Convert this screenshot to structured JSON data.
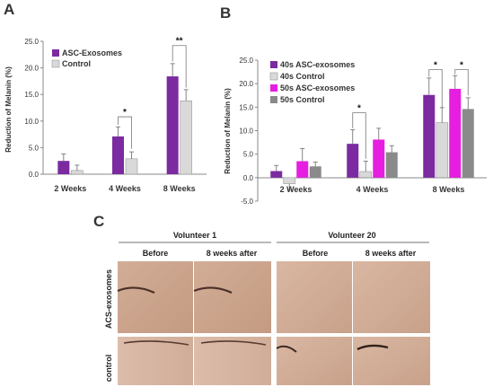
{
  "panels": {
    "a": "A",
    "b": "B",
    "c": "C"
  },
  "chart_data": [
    {
      "type": "bar",
      "panel": "A",
      "ylabel": "Reduction of Melanin (%)",
      "xlabel": "",
      "ylim": [
        0,
        25
      ],
      "yticks": [
        "0.0",
        "5.0",
        "10.0",
        "15.0",
        "20.0",
        "25.0"
      ],
      "categories": [
        "2 Weeks",
        "4 Weeks",
        "8 Weeks"
      ],
      "series": [
        {
          "name": "ASC-Exosomes",
          "color": "#7b2aa0",
          "values": [
            2.5,
            7.1,
            18.4
          ],
          "errors": [
            1.3,
            1.8,
            2.4
          ]
        },
        {
          "name": "Control",
          "color": "#d9d9d9",
          "values": [
            0.7,
            2.9,
            13.8
          ],
          "errors": [
            1.0,
            1.3,
            2.1
          ]
        }
      ],
      "significance": [
        {
          "category": "4 Weeks",
          "label": "*"
        },
        {
          "category": "8 Weeks",
          "label": "**"
        }
      ],
      "legend_position": "top-left",
      "grid": false
    },
    {
      "type": "bar",
      "panel": "B",
      "ylabel": "Reduction of Melanin (%)",
      "xlabel": "",
      "ylim": [
        -5,
        25
      ],
      "yticks": [
        "-5.0",
        "0.0",
        "5.0",
        "10.0",
        "15.0",
        "20.0",
        "25.0"
      ],
      "categories": [
        "2 Weeks",
        "4 Weeks",
        "8 Weeks"
      ],
      "series": [
        {
          "name": "40s ASC-exosomes",
          "color": "#7b2aa0",
          "values": [
            1.4,
            7.2,
            17.6
          ],
          "errors": [
            1.2,
            3.0,
            3.6
          ]
        },
        {
          "name": "40s Control",
          "color": "#d9d9d9",
          "values": [
            -1.3,
            1.3,
            11.7
          ],
          "errors": [
            1.3,
            2.2,
            3.2
          ]
        },
        {
          "name": "50s ASC-exosomes",
          "color": "#e61ee0",
          "values": [
            3.5,
            8.1,
            18.9
          ],
          "errors": [
            2.7,
            2.4,
            2.8
          ]
        },
        {
          "name": "50s Control",
          "color": "#8a8a8a",
          "values": [
            2.4,
            5.4,
            14.6
          ],
          "errors": [
            0.9,
            1.4,
            2.4
          ]
        }
      ],
      "significance": [
        {
          "category": "4 Weeks",
          "label": "*"
        },
        {
          "category": "8 Weeks",
          "label": "*"
        },
        {
          "category": "8 Weeks",
          "label": "*"
        }
      ],
      "legend_position": "top-left",
      "grid": false
    }
  ],
  "figure_c": {
    "volunteers": [
      "Volunteer 1",
      "Volunteer 20"
    ],
    "columns": [
      "Before",
      "8 weeks after",
      "Before",
      "8 weeks after"
    ],
    "rows": [
      "ACS-exosomes",
      "control"
    ]
  }
}
